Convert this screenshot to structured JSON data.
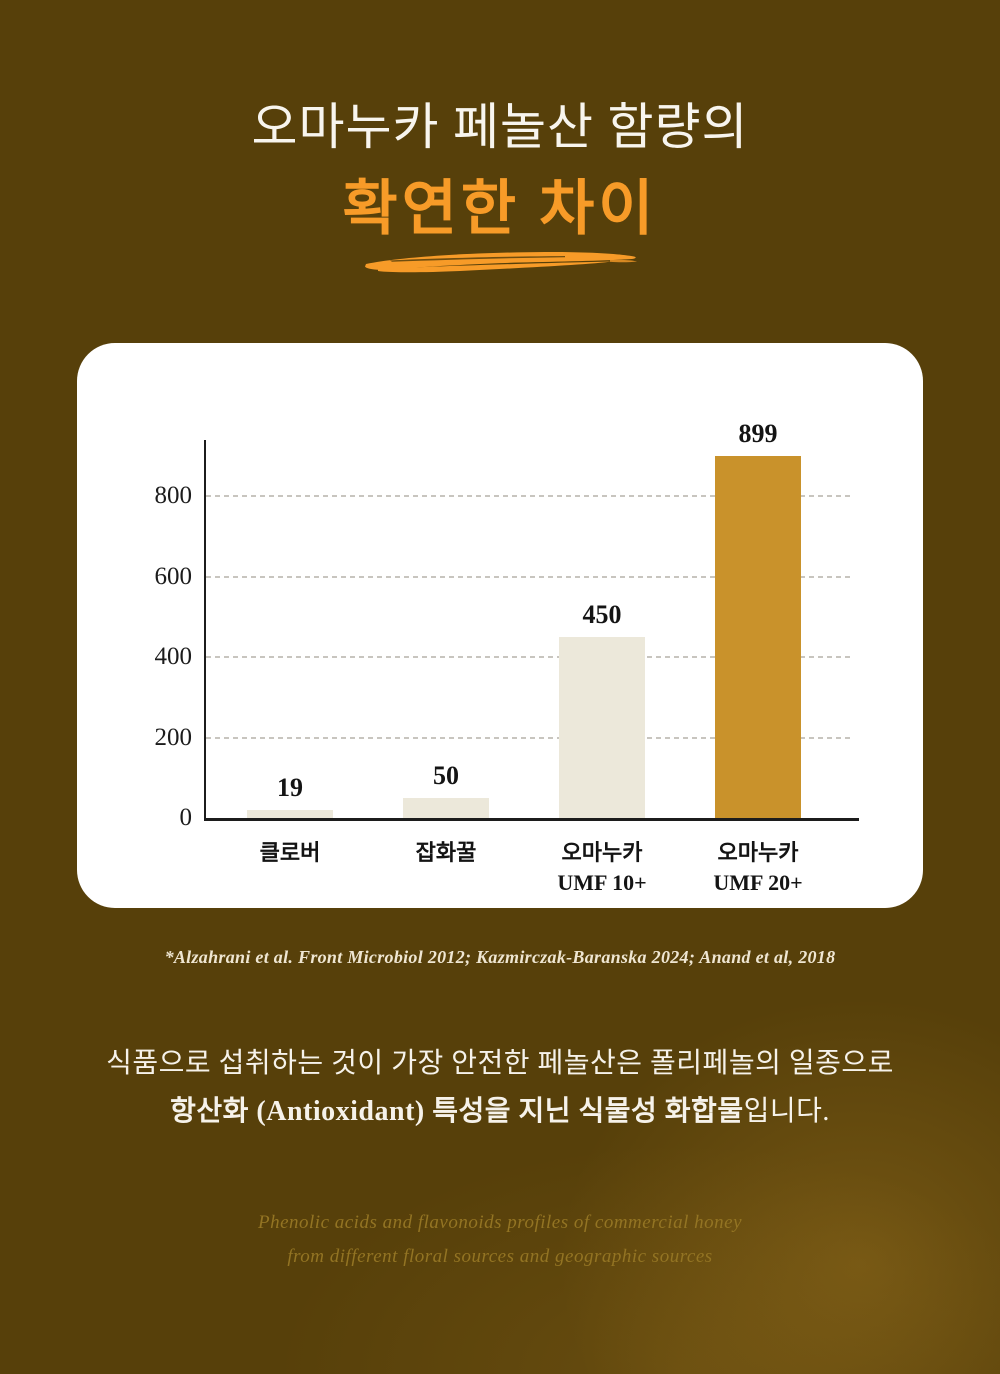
{
  "header": {
    "title_line1": "오마누카 페놀산 함량의",
    "title_line2": "확연한 차이"
  },
  "chart_data": {
    "type": "bar",
    "title": "",
    "xlabel": "",
    "ylabel": "",
    "categories": [
      "클로버",
      "잡화꿀",
      "오마누카 UMF 10+",
      "오마누카 UMF 20+"
    ],
    "category_lines": [
      [
        "클로버"
      ],
      [
        "잡화꿀"
      ],
      [
        "오마누카",
        "UMF 10+"
      ],
      [
        "오마누카",
        "UMF 20+"
      ]
    ],
    "values": [
      19,
      50,
      450,
      899
    ],
    "value_labels": [
      "19",
      "50",
      "450",
      "899"
    ],
    "bar_colors": [
      "#ece8da",
      "#ece8da",
      "#ece8da",
      "#c9922b"
    ],
    "yticks": [
      0,
      200,
      400,
      600,
      800
    ],
    "ylim": [
      0,
      940
    ],
    "grid": "horizontal dashed",
    "legend": "none"
  },
  "citation": "*Alzahrani et al. Front Microbiol 2012; Kazmirczak-Baranska 2024; Anand et al, 2018",
  "body": {
    "line1": "식품으로 섭취하는 것이 가장 안전한 페놀산은 폴리페놀의 일종으로",
    "line2_bold": "항산화 (Antioxidant) 특성을 지닌 식물성 화합물",
    "line2_rest": "입니다."
  },
  "footnote": {
    "line1": "Phenolic acids and flavonoids profiles of commercial honey",
    "line2": "from different floral sources and geographic sources"
  },
  "colors": {
    "background": "#57400a",
    "accent_orange": "#f79b28",
    "card": "#ffffff",
    "bar_cream": "#ece8da",
    "bar_gold": "#c9922b",
    "axis": "#1c1c1c",
    "gridline": "#c8c5bf",
    "title_white": "#f8f5ee",
    "citation_cream": "#efe6d2",
    "footnote_dim_gold": "#937423"
  }
}
